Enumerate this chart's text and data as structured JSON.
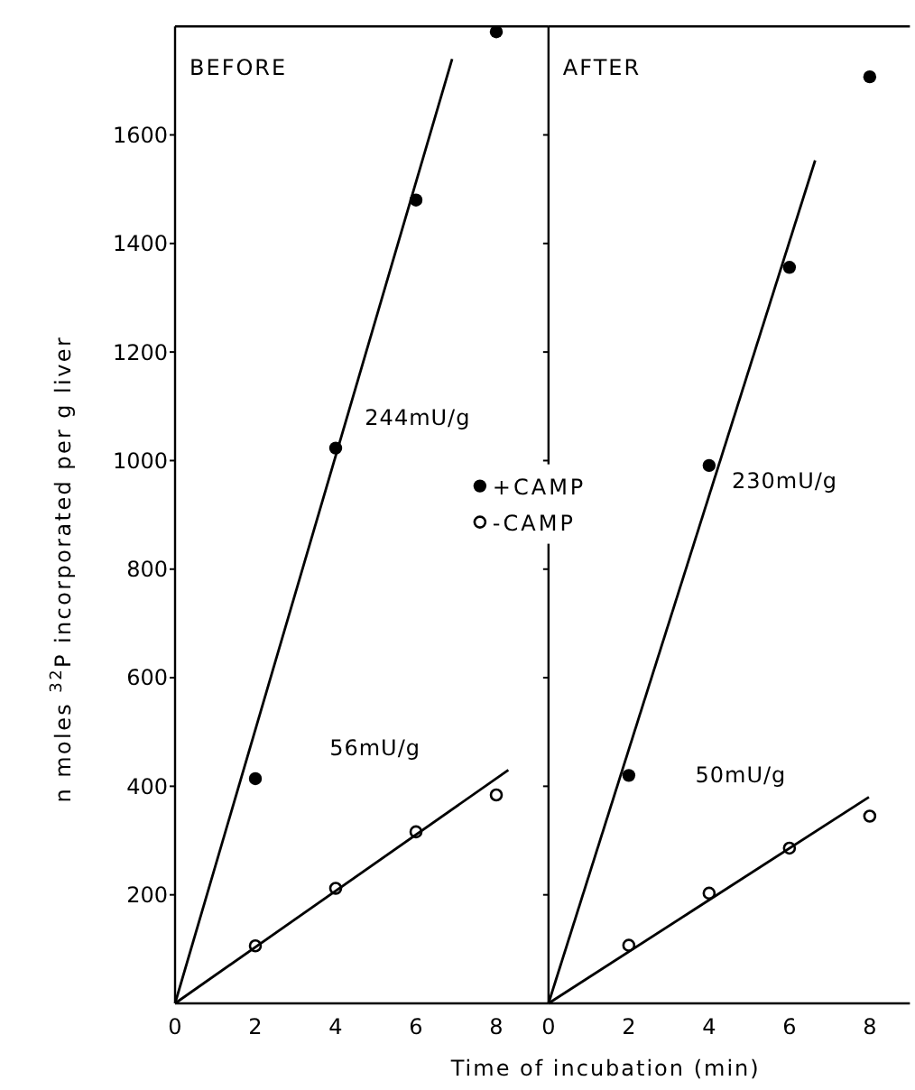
{
  "chart_data": [
    {
      "type": "scatter",
      "title": "BEFORE",
      "ylabel": "n moles $^{32}$P incorporated per g liver",
      "xlim": [
        0,
        9.3
      ],
      "ylim": [
        0,
        1800
      ],
      "xticks": [
        0,
        2,
        4,
        6,
        8
      ],
      "yticks": [
        200,
        400,
        600,
        800,
        1000,
        1200,
        1400,
        1600
      ],
      "legend": false,
      "grid": false,
      "series": [
        {
          "color": "#000000",
          "marker": "circle",
          "x": [
            2,
            4,
            6,
            8
          ],
          "values": [
            414,
            1023,
            1480,
            1790
          ]
        },
        {
          "color": "#000000",
          "marker": "circle",
          "x": [
            2,
            4,
            6,
            8
          ],
          "values": [
            106,
            212,
            316,
            384
          ]
        },
        {
          "type": "line",
          "color": "#000000",
          "x": [
            0,
            6.9
          ],
          "values": [
            0,
            1740
          ]
        },
        {
          "type": "line",
          "color": "#000000",
          "x": [
            0,
            8.3
          ],
          "values": [
            0,
            430
          ]
        }
      ],
      "annotations": [
        "244mU/g",
        "56mU/g"
      ]
    },
    {
      "type": "scatter",
      "title": "AFTER",
      "xlabel": "Time of incubation (min)",
      "xlim": [
        0,
        9
      ],
      "ylim": [
        0,
        1800
      ],
      "xticks": [
        0,
        2,
        4,
        6,
        8
      ],
      "yticks": [
        200,
        400,
        600,
        800,
        1000,
        1200,
        1400,
        1600
      ],
      "tick_labels": "x",
      "legend": "left",
      "grid": false,
      "series": [
        {
          "name": "+CAMP",
          "color": "#000000",
          "marker": "circle",
          "x": [
            2,
            4,
            6,
            8
          ],
          "values": [
            420,
            991,
            1356,
            1707
          ]
        },
        {
          "name": "-CAMP",
          "color": "#000000",
          "marker": "circle",
          "x": [
            2,
            4,
            6,
            8
          ],
          "values": [
            107,
            203,
            286,
            345
          ]
        },
        {
          "type": "line",
          "color": "#000000",
          "x": [
            0,
            6.64
          ],
          "values": [
            0,
            1553
          ]
        },
        {
          "type": "line",
          "color": "#000000",
          "x": [
            0,
            7.98
          ],
          "values": [
            0,
            380
          ]
        }
      ],
      "annotations": [
        "230mU/g",
        "50mU/g"
      ]
    }
  ]
}
